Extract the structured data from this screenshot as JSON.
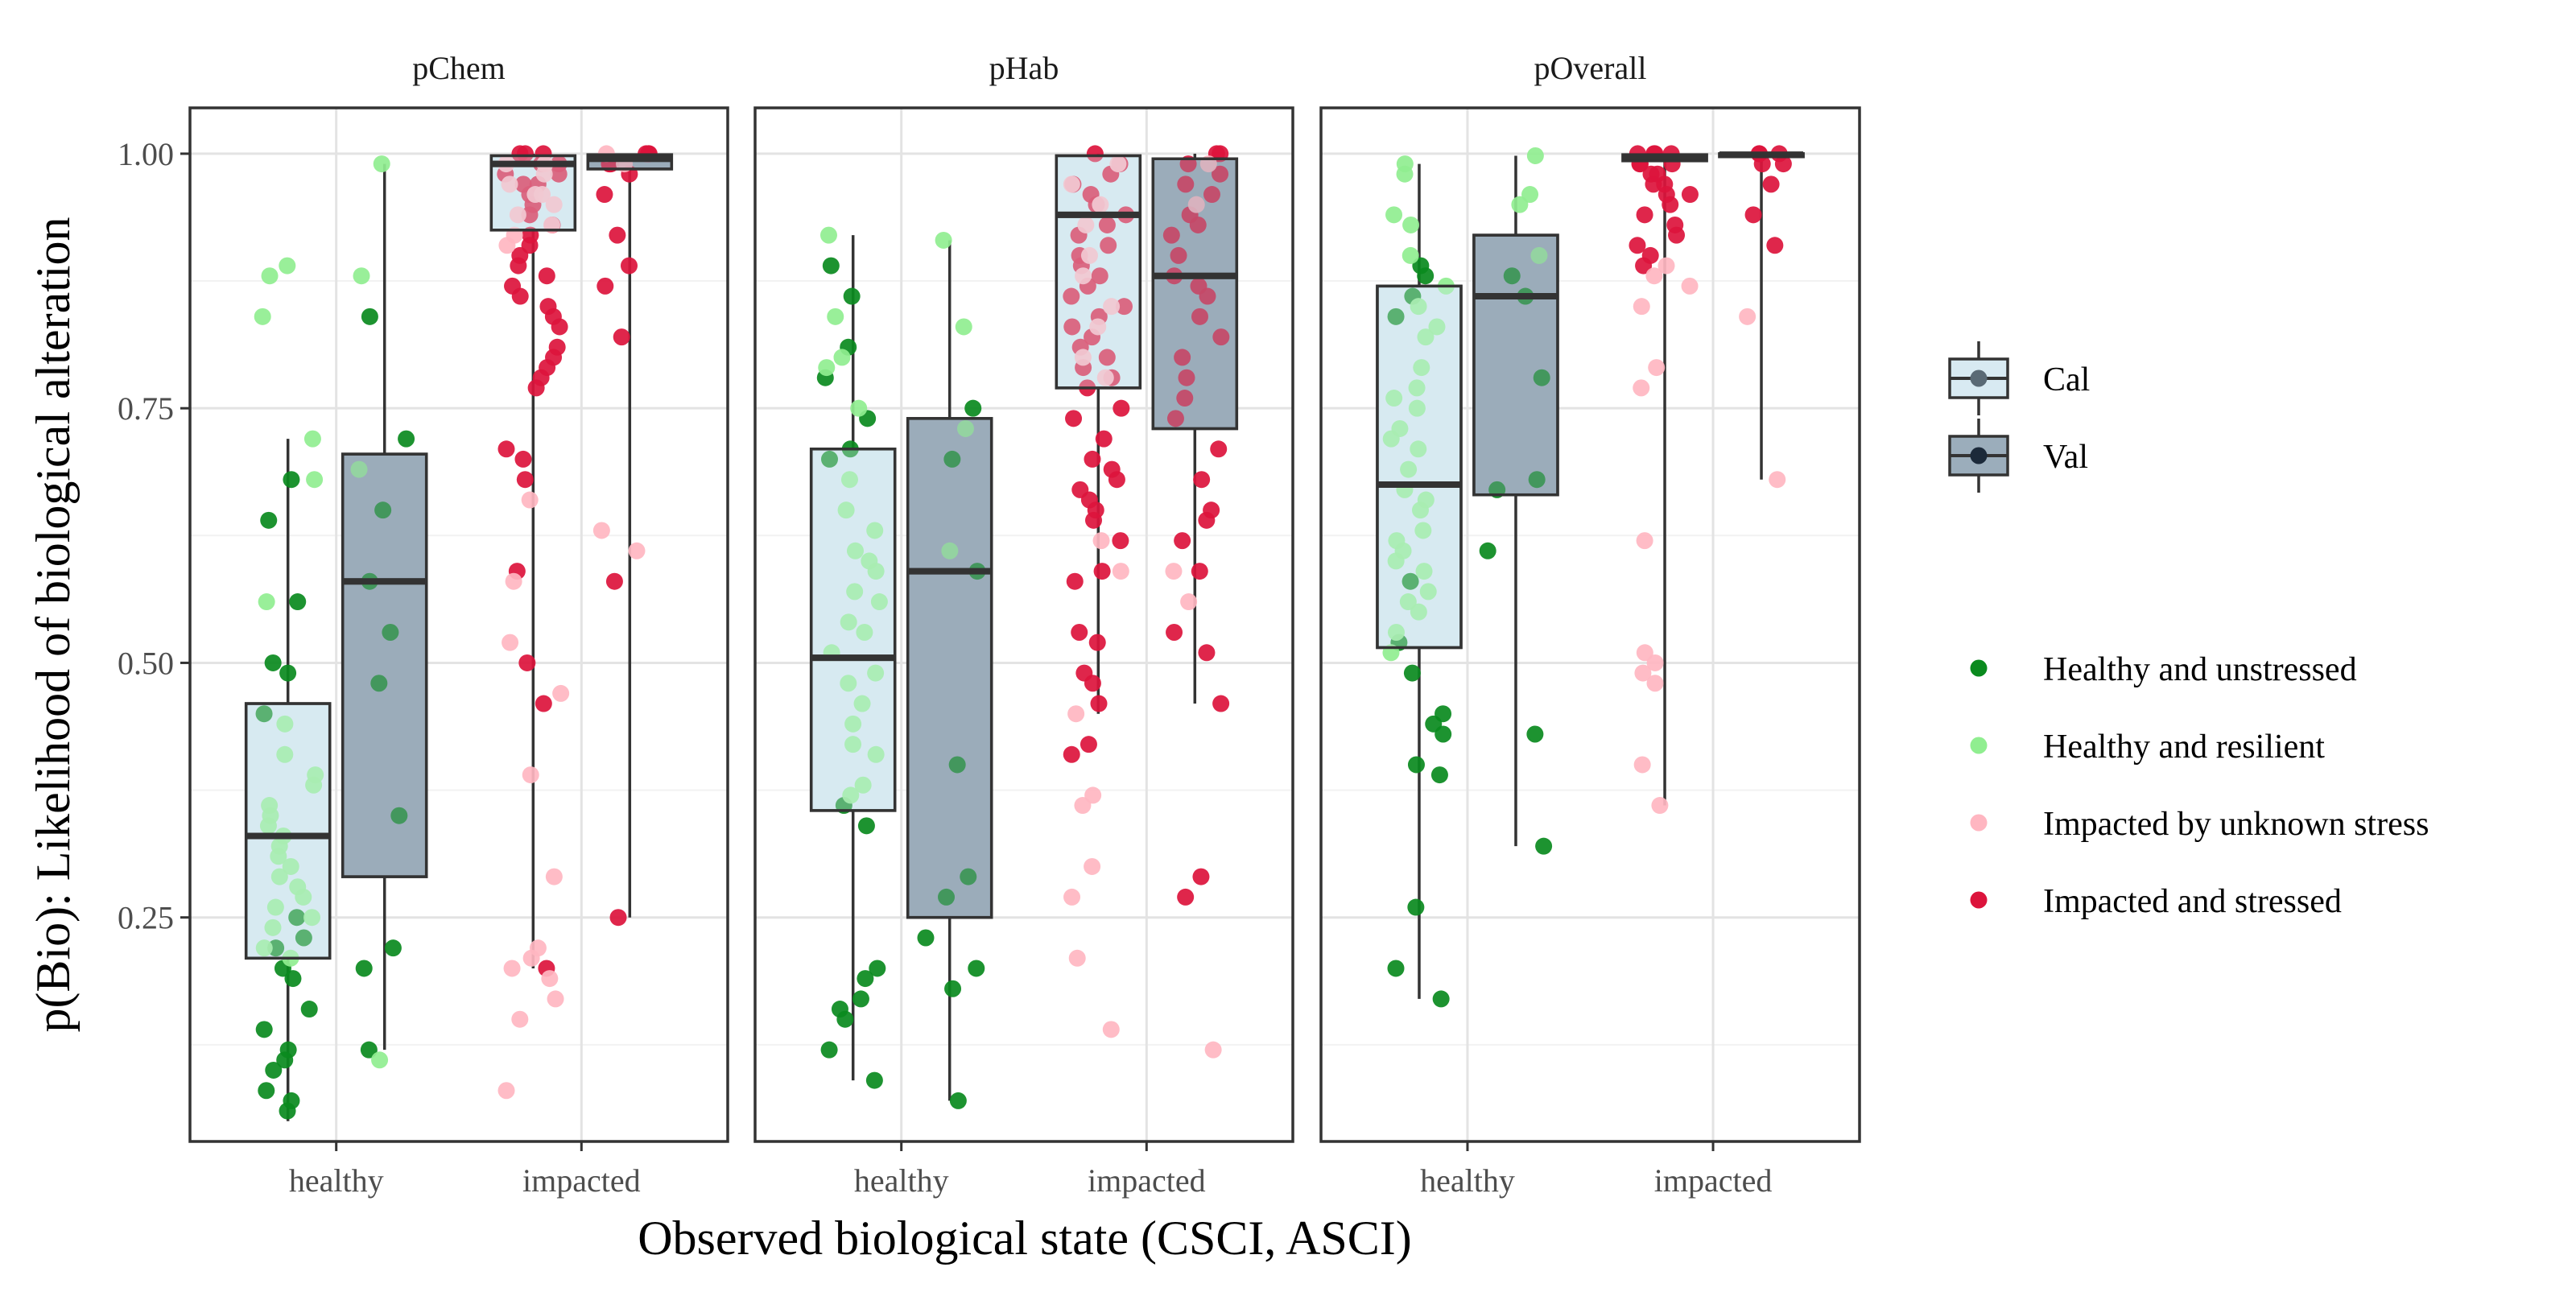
{
  "chart_data": {
    "type": "boxplot",
    "xlabel": "Observed biological state (CSCI, ASCI)",
    "ylabel": "p(Bio): Likelihood of biological alteration",
    "categories": [
      "healthy",
      "impacted"
    ],
    "ylim": [
      0.03,
      1.045
    ],
    "yticks": [
      0.25,
      0.5,
      0.75,
      1.0
    ],
    "ytick_labels": [
      "0.25",
      "0.50",
      "0.75",
      "1.00"
    ],
    "grid": true,
    "legend": {
      "placement": "right",
      "fill": [
        {
          "name": "Cal",
          "color": "#d8eaf2"
        },
        {
          "name": "Val",
          "color": "#9badbb"
        }
      ],
      "points": [
        {
          "name": "Healthy and unstressed",
          "color": "#0a8a1e"
        },
        {
          "name": "Healthy and resilient",
          "color": "#90ee90"
        },
        {
          "name": "Impacted by unknown stress",
          "color": "#ffb6c1"
        },
        {
          "name": "Impacted and stressed",
          "color": "#dc143c"
        }
      ]
    },
    "panels": [
      {
        "title": "pChem",
        "boxes": [
          {
            "category": "healthy",
            "set": "Cal",
            "min": 0.05,
            "q1": 0.21,
            "median": 0.33,
            "q3": 0.46,
            "max": 0.72
          },
          {
            "category": "healthy",
            "set": "Val",
            "min": 0.12,
            "q1": 0.29,
            "median": 0.58,
            "q3": 0.705,
            "max": 0.99
          },
          {
            "category": "impacted",
            "set": "Cal",
            "min": 0.2,
            "q1": 0.925,
            "median": 0.99,
            "q3": 0.998,
            "max": 1.0
          },
          {
            "category": "impacted",
            "set": "Val",
            "min": 0.25,
            "q1": 0.985,
            "median": 0.995,
            "q3": 0.999,
            "max": 1.0
          }
        ],
        "points": {
          "healthy_cal": {
            "unstressed": [
              0.06,
              0.07,
              0.08,
              0.1,
              0.11,
              0.12,
              0.14,
              0.16,
              0.19,
              0.2,
              0.22,
              0.23,
              0.25,
              0.45,
              0.49,
              0.5,
              0.56,
              0.64,
              0.68
            ],
            "resilient": [
              0.89,
              0.88,
              0.84,
              0.72,
              0.68,
              0.56,
              0.41,
              0.38,
              0.35,
              0.33,
              0.3,
              0.28,
              0.26,
              0.36,
              0.39,
              0.44,
              0.24,
              0.21,
              0.31,
              0.34,
              0.27,
              0.29,
              0.32,
              0.22,
              0.25
            ]
          },
          "healthy_val": {
            "unstressed": [
              0.84,
              0.72,
              0.65,
              0.58,
              0.53,
              0.48,
              0.35,
              0.22,
              0.2,
              0.12
            ],
            "resilient": [
              0.99,
              0.88,
              0.69,
              0.11
            ]
          },
          "impacted_cal": {
            "stressed": [
              1.0,
              0.99,
              0.98,
              0.97,
              0.96,
              0.95,
              0.94,
              0.93,
              0.92,
              0.91,
              0.9,
              0.89,
              0.88,
              0.87,
              0.86,
              0.85,
              0.84,
              0.83,
              0.81,
              0.8,
              0.79,
              0.78,
              0.77,
              0.71,
              0.7,
              0.68,
              0.59,
              0.5,
              0.46,
              0.2,
              1.0,
              0.99,
              0.98,
              1.0,
              0.97
            ],
            "unknown": [
              0.66,
              0.52,
              0.47,
              0.39,
              0.29,
              0.22,
              0.21,
              0.2,
              0.19,
              0.17,
              0.15,
              0.08,
              0.58,
              0.99,
              0.98,
              0.96,
              0.95,
              0.94,
              0.93,
              0.92,
              0.91,
              0.97,
              0.99,
              0.96
            ]
          },
          "impacted_val": {
            "stressed": [
              1.0,
              1.0,
              0.99,
              0.98,
              0.96,
              0.92,
              0.89,
              0.87,
              0.82,
              0.58,
              0.25,
              1.0,
              0.99,
              0.99
            ],
            "unknown": [
              0.63,
              0.61,
              1.0,
              0.99
            ]
          }
        }
      },
      {
        "title": "pHab",
        "boxes": [
          {
            "category": "healthy",
            "set": "Cal",
            "min": 0.09,
            "q1": 0.355,
            "median": 0.505,
            "q3": 0.71,
            "max": 0.92
          },
          {
            "category": "healthy",
            "set": "Val",
            "min": 0.07,
            "q1": 0.25,
            "median": 0.59,
            "q3": 0.74,
            "max": 0.915
          },
          {
            "category": "impacted",
            "set": "Cal",
            "min": 0.45,
            "q1": 0.77,
            "median": 0.94,
            "q3": 0.998,
            "max": 1.0
          },
          {
            "category": "impacted",
            "set": "Val",
            "min": 0.46,
            "q1": 0.73,
            "median": 0.88,
            "q3": 0.995,
            "max": 1.0
          }
        ],
        "points": {
          "healthy_cal": {
            "unstressed": [
              0.89,
              0.86,
              0.81,
              0.78,
              0.74,
              0.71,
              0.34,
              0.36,
              0.2,
              0.19,
              0.17,
              0.16,
              0.15,
              0.12,
              0.09,
              0.7
            ],
            "resilient": [
              0.92,
              0.84,
              0.8,
              0.79,
              0.75,
              0.68,
              0.65,
              0.61,
              0.59,
              0.57,
              0.54,
              0.51,
              0.49,
              0.46,
              0.44,
              0.41,
              0.38,
              0.37,
              0.56,
              0.63,
              0.48,
              0.42,
              0.53,
              0.6
            ]
          },
          "healthy_val": {
            "unstressed": [
              0.75,
              0.7,
              0.59,
              0.4,
              0.29,
              0.27,
              0.23,
              0.2,
              0.18,
              0.07
            ],
            "resilient": [
              0.915,
              0.83,
              0.73,
              0.61
            ]
          },
          "impacted_cal": {
            "stressed": [
              1.0,
              0.99,
              0.98,
              0.97,
              0.96,
              0.95,
              0.94,
              0.93,
              0.92,
              0.91,
              0.9,
              0.89,
              0.88,
              0.87,
              0.86,
              0.85,
              0.84,
              0.83,
              0.82,
              0.81,
              0.8,
              0.79,
              0.78,
              0.77,
              0.75,
              0.72,
              0.7,
              0.68,
              0.67,
              0.66,
              0.64,
              0.62,
              0.59,
              0.58,
              0.53,
              0.52,
              0.49,
              0.48,
              0.46,
              0.42,
              0.41,
              0.74,
              0.69,
              0.65
            ],
            "unknown": [
              0.62,
              0.59,
              0.45,
              0.37,
              0.36,
              0.3,
              0.27,
              0.21,
              0.14,
              0.99,
              0.97,
              0.95,
              0.93,
              0.9,
              0.88,
              0.85,
              0.83,
              0.8,
              0.78
            ]
          },
          "impacted_val": {
            "stressed": [
              1.0,
              1.0,
              0.99,
              0.98,
              0.96,
              0.94,
              0.92,
              0.9,
              0.88,
              0.86,
              0.84,
              0.82,
              0.8,
              0.78,
              0.76,
              0.74,
              0.71,
              0.68,
              0.65,
              0.64,
              0.62,
              0.59,
              0.53,
              0.51,
              0.46,
              0.29,
              0.27,
              0.97,
              0.93,
              0.87
            ],
            "unknown": [
              0.59,
              0.56,
              0.12,
              0.99,
              0.95
            ]
          }
        }
      },
      {
        "title": "pOverall",
        "boxes": [
          {
            "category": "healthy",
            "set": "Cal",
            "min": 0.17,
            "q1": 0.515,
            "median": 0.675,
            "q3": 0.87,
            "max": 0.99
          },
          {
            "category": "healthy",
            "set": "Val",
            "min": 0.32,
            "q1": 0.665,
            "median": 0.86,
            "q3": 0.92,
            "max": 0.998
          },
          {
            "category": "impacted",
            "set": "Cal",
            "min": 0.36,
            "q1": 0.993,
            "median": 0.997,
            "q3": 0.999,
            "max": 1.0
          },
          {
            "category": "impacted",
            "set": "Val",
            "min": 0.68,
            "q1": 0.997,
            "median": 0.999,
            "q3": 1.0,
            "max": 1.0
          }
        ],
        "points": {
          "healthy_cal": {
            "unstressed": [
              0.89,
              0.88,
              0.86,
              0.84,
              0.52,
              0.49,
              0.45,
              0.44,
              0.43,
              0.4,
              0.39,
              0.26,
              0.2,
              0.17,
              0.58
            ],
            "resilient": [
              0.99,
              0.98,
              0.94,
              0.93,
              0.9,
              0.87,
              0.83,
              0.82,
              0.79,
              0.76,
              0.75,
              0.73,
              0.71,
              0.69,
              0.67,
              0.65,
              0.63,
              0.61,
              0.59,
              0.57,
              0.55,
              0.53,
              0.51,
              0.85,
              0.77,
              0.72,
              0.66,
              0.62,
              0.6,
              0.56
            ]
          },
          "healthy_val": {
            "unstressed": [
              0.88,
              0.86,
              0.78,
              0.68,
              0.67,
              0.61,
              0.43,
              0.32
            ],
            "resilient": [
              0.998,
              0.96,
              0.95,
              0.9
            ]
          },
          "impacted_cal": {
            "stressed": [
              1.0,
              1.0,
              1.0,
              0.99,
              0.99,
              0.98,
              0.97,
              0.96,
              0.95,
              0.94,
              0.93,
              0.92,
              0.91,
              0.9,
              0.89,
              1.0,
              0.99,
              0.98,
              0.97,
              0.96
            ],
            "unknown": [
              0.89,
              0.87,
              0.85,
              0.79,
              0.77,
              0.62,
              0.51,
              0.5,
              0.49,
              0.48,
              0.4,
              0.36,
              0.88
            ]
          },
          "impacted_val": {
            "stressed": [
              1.0,
              1.0,
              0.99,
              0.99,
              0.97,
              0.94,
              0.91,
              1.0
            ],
            "unknown": [
              0.84,
              0.68
            ]
          }
        }
      }
    ]
  }
}
